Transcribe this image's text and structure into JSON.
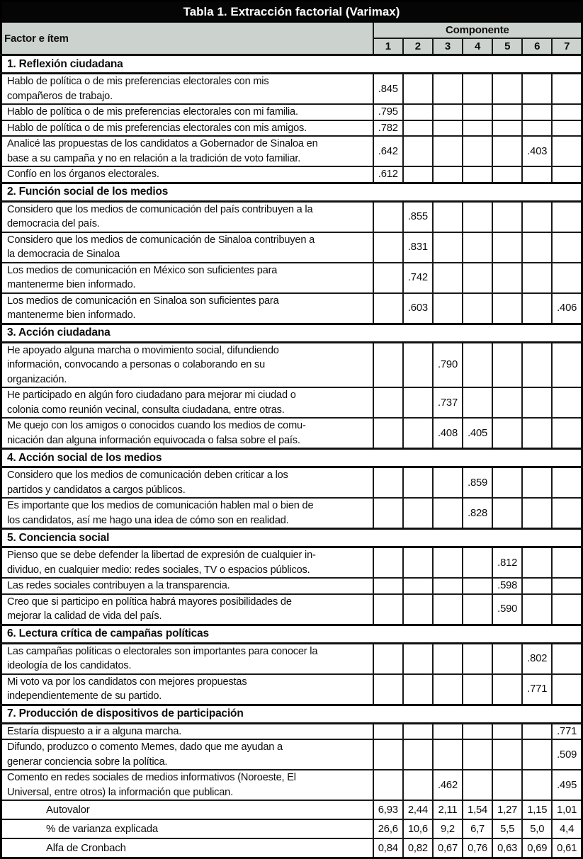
{
  "title": "Tabla 1. Extracción factorial (Varimax)",
  "header": {
    "factor_label": "Factor e ítem",
    "component_label": "Componente",
    "component_numbers": [
      "1",
      "2",
      "3",
      "4",
      "5",
      "6",
      "7"
    ]
  },
  "colors": {
    "title_bg": "#050505",
    "title_text": "#ffffff",
    "header_bg": "#ccd3cf",
    "border": "#1a1a1a"
  },
  "sections": [
    {
      "label": "1. Reflexión ciudadana",
      "items": [
        {
          "text": "Hablo de política o de mis preferencias electorales con mis\ncompañeros de trabajo.",
          "loadings": [
            ".845",
            "",
            "",
            "",
            "",
            "",
            ""
          ]
        },
        {
          "text": "Hablo de política o de mis preferencias electorales con mi familia.",
          "loadings": [
            ".795",
            "",
            "",
            "",
            "",
            "",
            ""
          ]
        },
        {
          "text": "Hablo de política o de mis preferencias electorales con mis amigos.",
          "loadings": [
            ".782",
            "",
            "",
            "",
            "",
            "",
            ""
          ]
        },
        {
          "text": "Analicé las propuestas de los candidatos a Gobernador de Sinaloa en\nbase a su campaña y no en relación a la tradición de voto familiar.",
          "loadings": [
            ".642",
            "",
            "",
            "",
            "",
            ".403",
            ""
          ]
        },
        {
          "text": "Confío en los órganos electorales.",
          "loadings": [
            ".612",
            "",
            "",
            "",
            "",
            "",
            ""
          ]
        }
      ]
    },
    {
      "label": "2. Función social de los medios",
      "items": [
        {
          "text": "Considero que los medios de comunicación del país contribuyen a la\ndemocracia del país.",
          "loadings": [
            "",
            ".855",
            "",
            "",
            "",
            "",
            ""
          ]
        },
        {
          "text": "Considero que los medios de comunicación de Sinaloa contribuyen a\nla democracia de Sinaloa",
          "loadings": [
            "",
            ".831",
            "",
            "",
            "",
            "",
            ""
          ]
        },
        {
          "text": "Los medios de comunicación en México son suficientes para\nmantenerme bien informado.",
          "loadings": [
            "",
            ".742",
            "",
            "",
            "",
            "",
            ""
          ]
        },
        {
          "text": "Los medios de comunicación en Sinaloa son suficientes para\nmantenerme bien informado.",
          "loadings": [
            "",
            ".603",
            "",
            "",
            "",
            "",
            ".406"
          ]
        }
      ]
    },
    {
      "label": "3. Acción ciudadana",
      "items": [
        {
          "text": "He apoyado alguna marcha o movimiento social, difundiendo\ninformación, convocando a personas o colaborando en su\norganización.",
          "loadings": [
            "",
            "",
            ".790",
            "",
            "",
            "",
            ""
          ]
        },
        {
          "text": "He participado en algún foro ciudadano para mejorar mi ciudad o\ncolonia como reunión vecinal, consulta ciudadana, entre otras.",
          "loadings": [
            "",
            "",
            ".737",
            "",
            "",
            "",
            ""
          ]
        },
        {
          "text": "Me quejo con los amigos o conocidos cuando los medios de comu-\nnicación dan alguna información equivocada o falsa sobre el país.",
          "loadings": [
            "",
            "",
            ".408",
            ".405",
            "",
            "",
            ""
          ]
        }
      ]
    },
    {
      "label": "4. Acción social de los medios",
      "items": [
        {
          "text": "Considero que los medios de comunicación deben criticar a los\npartidos y candidatos a cargos públicos.",
          "loadings": [
            "",
            "",
            "",
            ".859",
            "",
            "",
            ""
          ]
        },
        {
          "text": "Es importante que los medios de comunicación hablen mal o bien de\nlos candidatos, así me hago una idea de cómo son en realidad.",
          "loadings": [
            "",
            "",
            "",
            ".828",
            "",
            "",
            ""
          ]
        }
      ]
    },
    {
      "label": "5. Conciencia social",
      "items": [
        {
          "text": "Pienso que se debe defender la libertad de expresión de cualquier in-\ndividuo, en cualquier medio: redes sociales, TV o espacios públicos.",
          "loadings": [
            "",
            "",
            "",
            "",
            ".812",
            "",
            ""
          ]
        },
        {
          "text": "Las redes sociales contribuyen a la transparencia.",
          "loadings": [
            "",
            "",
            "",
            "",
            ".598",
            "",
            ""
          ]
        },
        {
          "text": "Creo que si participo en política habrá mayores posibilidades de\nmejorar la calidad de vida del país.",
          "loadings": [
            "",
            "",
            "",
            "",
            ".590",
            "",
            ""
          ]
        }
      ]
    },
    {
      "label": "6. Lectura crítica de campañas políticas",
      "items": [
        {
          "text": "Las campañas políticas o electorales son importantes para conocer la\nideología de los candidatos.",
          "loadings": [
            "",
            "",
            "",
            "",
            "",
            ".802",
            ""
          ]
        },
        {
          "text": "Mi voto va por los candidatos con mejores propuestas\nindependientemente de su partido.",
          "loadings": [
            "",
            "",
            "",
            "",
            "",
            ".771",
            ""
          ]
        }
      ]
    },
    {
      "label": "7. Producción de dispositivos de participación",
      "items": [
        {
          "text": "Estaría dispuesto a ir a alguna marcha.",
          "loadings": [
            "",
            "",
            "",
            "",
            "",
            "",
            ".771"
          ]
        },
        {
          "text": "Difundo, produzco o comento Memes, dado que me ayudan a\ngenerar conciencia sobre la política.",
          "loadings": [
            "",
            "",
            "",
            "",
            "",
            "",
            ".509"
          ]
        },
        {
          "text": "Comento en redes sociales de medios informativos (Noroeste, El\nUniversal, entre otros) la información que publican.",
          "loadings": [
            "",
            "",
            ".462",
            "",
            "",
            "",
            ".495"
          ]
        }
      ]
    }
  ],
  "summary_rows": [
    {
      "label": "Autovalor",
      "values": [
        "6,93",
        "2,44",
        "2,11",
        "1,54",
        "1,27",
        "1,15",
        "1,01"
      ]
    },
    {
      "label": "% de varianza explicada",
      "values": [
        "26,6",
        "10,6",
        "9,2",
        "6,7",
        "5,5",
        "5,0",
        "4,4"
      ]
    },
    {
      "label": "Alfa de Cronbach",
      "values": [
        "0,84",
        "0,82",
        "0,67",
        "0,76",
        "0,63",
        "0,69",
        "0,61"
      ]
    }
  ]
}
